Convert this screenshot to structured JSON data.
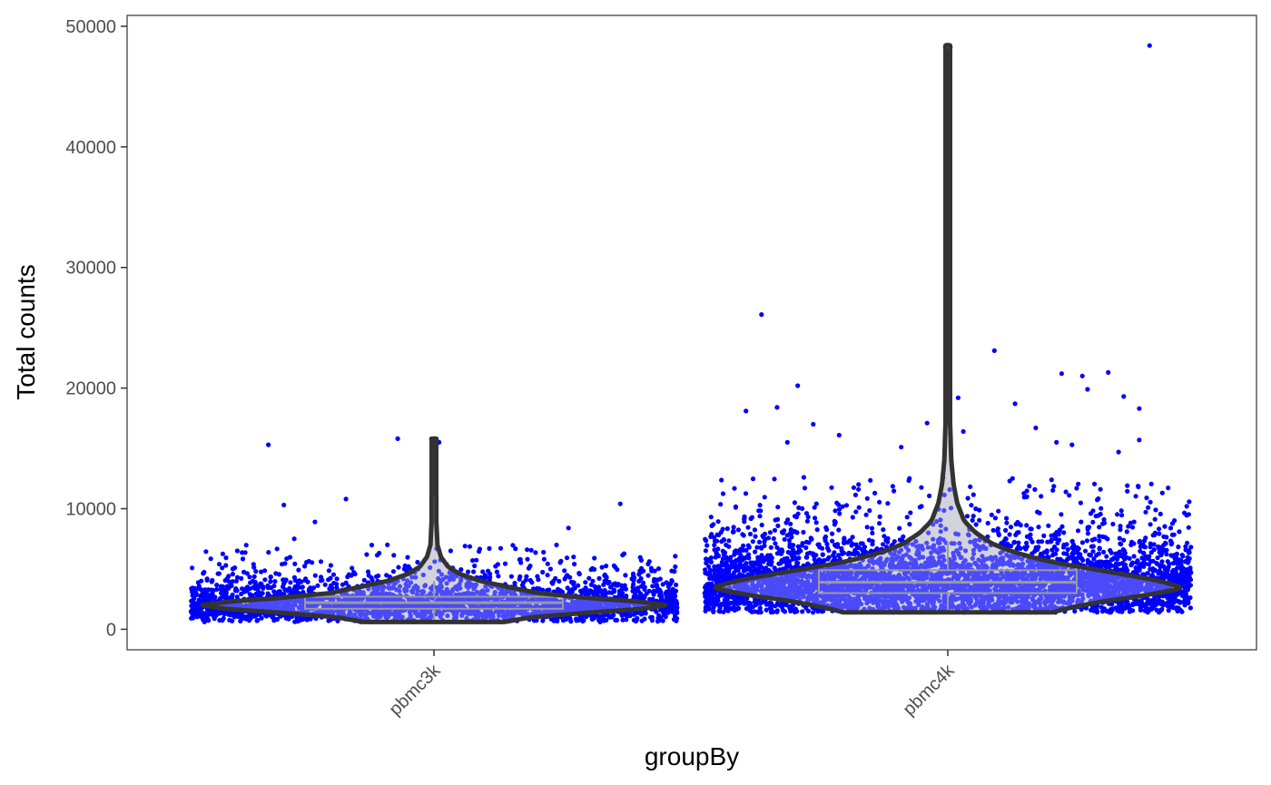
{
  "chart_data": {
    "type": "violin",
    "xlabel": "groupBy",
    "ylabel": "Total counts",
    "ylim": [
      -1700,
      50900
    ],
    "yticks": [
      0,
      10000,
      20000,
      30000,
      40000,
      50000
    ],
    "ytick_labels": [
      "0",
      "10000",
      "20000",
      "30000",
      "40000",
      "50000"
    ],
    "categories": [
      "pbmc3k",
      "pbmc4k"
    ],
    "grid": false,
    "legend": "none",
    "colors": {
      "points": "#0000ff",
      "violin_fill": "#d3d3d3",
      "violin_stroke": "#333333",
      "box": "#9a9a9a",
      "frame": "#333333"
    },
    "groups": [
      {
        "name": "pbmc3k",
        "n_cells": 2700,
        "points_min": 600,
        "points_max": 15800,
        "box": {
          "q1": 1700,
          "median": 2200,
          "q3": 2700,
          "whisker_low": 600,
          "whisker_high": 4000
        },
        "violin_profile": [
          [
            600,
            0.3
          ],
          [
            1000,
            0.42
          ],
          [
            1400,
            0.68
          ],
          [
            1700,
            0.9
          ],
          [
            2000,
            1.0
          ],
          [
            2300,
            0.88
          ],
          [
            2600,
            0.66
          ],
          [
            3000,
            0.45
          ],
          [
            3500,
            0.32
          ],
          [
            4000,
            0.2
          ],
          [
            4600,
            0.11
          ],
          [
            5200,
            0.06
          ],
          [
            6000,
            0.03
          ],
          [
            7000,
            0.015
          ],
          [
            9000,
            0.01
          ],
          [
            11000,
            0.01
          ],
          [
            13000,
            0.008
          ],
          [
            15000,
            0.008
          ],
          [
            15800,
            0.008
          ]
        ],
        "outliers": [
          [
            -0.32,
            15300
          ],
          [
            -0.07,
            15800
          ],
          [
            0.01,
            15500
          ],
          [
            -0.17,
            10800
          ],
          [
            -0.29,
            10300
          ],
          [
            0.36,
            10400
          ],
          [
            0.26,
            8400
          ],
          [
            -0.23,
            8900
          ],
          [
            -0.09,
            7000
          ],
          [
            0.06,
            6900
          ],
          [
            0.18,
            6600
          ],
          [
            -0.38,
            6500
          ],
          [
            -0.27,
            7500
          ],
          [
            0.31,
            5900
          ],
          [
            -0.13,
            6200
          ]
        ]
      },
      {
        "name": "pbmc4k",
        "n_cells": 4300,
        "points_min": 1400,
        "points_max": 48400,
        "box": {
          "q1": 3000,
          "median": 3900,
          "q3": 4900,
          "whisker_low": 1400,
          "whisker_high": 7300
        },
        "violin_profile": [
          [
            1400,
            0.45
          ],
          [
            1900,
            0.55
          ],
          [
            2400,
            0.7
          ],
          [
            2900,
            0.88
          ],
          [
            3400,
            1.0
          ],
          [
            3900,
            0.94
          ],
          [
            4400,
            0.8
          ],
          [
            5000,
            0.62
          ],
          [
            5600,
            0.44
          ],
          [
            6300,
            0.3
          ],
          [
            7000,
            0.2
          ],
          [
            8000,
            0.12
          ],
          [
            9000,
            0.07
          ],
          [
            10500,
            0.04
          ],
          [
            12000,
            0.025
          ],
          [
            14000,
            0.015
          ],
          [
            17000,
            0.01
          ],
          [
            21000,
            0.008
          ],
          [
            30000,
            0.007
          ],
          [
            40000,
            0.007
          ],
          [
            48400,
            0.007
          ]
        ],
        "outliers": [
          [
            0.39,
            48400
          ],
          [
            -0.36,
            26100
          ],
          [
            0.09,
            23100
          ],
          [
            0.31,
            21300
          ],
          [
            0.22,
            21200
          ],
          [
            0.26,
            21000
          ],
          [
            -0.29,
            20200
          ],
          [
            0.34,
            19300
          ],
          [
            0.27,
            19900
          ],
          [
            0.02,
            19200
          ],
          [
            0.13,
            18700
          ],
          [
            -0.39,
            18100
          ],
          [
            -0.33,
            18400
          ],
          [
            0.37,
            18300
          ],
          [
            -0.26,
            17000
          ],
          [
            -0.04,
            17100
          ],
          [
            0.17,
            16700
          ],
          [
            0.37,
            15700
          ],
          [
            -0.31,
            15500
          ],
          [
            0.03,
            16400
          ],
          [
            0.21,
            15500
          ],
          [
            0.24,
            15300
          ],
          [
            -0.09,
            15100
          ],
          [
            0.33,
            14700
          ],
          [
            -0.21,
            16100
          ]
        ]
      }
    ]
  }
}
